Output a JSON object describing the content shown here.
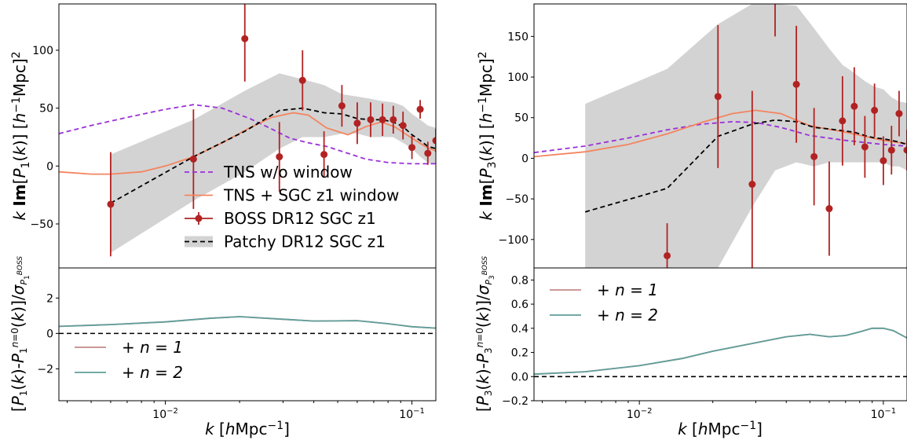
{
  "chart_data": [
    {
      "type": "line",
      "panel": "top-left",
      "xscale": "log",
      "xlim": [
        0.0037,
        0.125
      ],
      "ylim": [
        -88,
        140
      ],
      "ylabel": "k Im[P_1(k)] [h^-1 Mpc]^2",
      "yticks": [
        {
          "v": -50,
          "label": "−50"
        },
        {
          "v": 0,
          "label": "0"
        },
        {
          "v": 50,
          "label": "50"
        },
        {
          "v": 100,
          "label": "100"
        }
      ],
      "legend_position": "lower-center",
      "legend": [
        {
          "label": "TNS w/o window",
          "kind": "dashed",
          "color": "#9b30d9"
        },
        {
          "label": "TNS + SGC z1 window",
          "kind": "solid",
          "color": "#f4845f"
        },
        {
          "label": "BOSS DR12 SGC z1",
          "kind": "errorbar",
          "color": "#b22222"
        },
        {
          "label": "Patchy DR12 SGC z1",
          "kind": "band",
          "color": "#000000"
        }
      ],
      "series": [
        {
          "name": "TNS w/o window",
          "style": "dashed",
          "color": "#9b30d9",
          "x": [
            0.0037,
            0.005,
            0.007,
            0.01,
            0.013,
            0.017,
            0.022,
            0.027,
            0.032,
            0.038,
            0.045,
            0.055,
            0.065,
            0.08,
            0.1,
            0.125
          ],
          "y": [
            28,
            35,
            42,
            49,
            53,
            50,
            41,
            32,
            24,
            20,
            17,
            11,
            6,
            3,
            2,
            2
          ]
        },
        {
          "name": "TNS + SGC z1 window",
          "style": "solid",
          "color": "#f4845f",
          "x": [
            0.0037,
            0.005,
            0.006,
            0.008,
            0.01,
            0.013,
            0.017,
            0.022,
            0.027,
            0.033,
            0.038,
            0.045,
            0.055,
            0.065,
            0.075,
            0.085,
            0.1,
            0.115,
            0.125
          ],
          "y": [
            -5,
            -7,
            -7,
            -5,
            0,
            8,
            20,
            33,
            42,
            46,
            44,
            33,
            27,
            34,
            38,
            34,
            24,
            16,
            13
          ]
        },
        {
          "name": "Patchy DR12 SGC z1",
          "style": "dashed",
          "color": "#000000",
          "x": [
            0.006,
            0.013,
            0.021,
            0.029,
            0.036,
            0.044,
            0.052,
            0.06,
            0.068,
            0.076,
            0.084,
            0.092,
            0.1,
            0.108,
            0.116,
            0.125
          ],
          "y": [
            -32,
            8,
            30,
            48,
            50,
            46,
            45,
            41,
            40,
            40,
            38,
            34,
            27,
            22,
            17,
            15
          ]
        }
      ],
      "band": {
        "x": [
          0.006,
          0.013,
          0.021,
          0.029,
          0.036,
          0.044,
          0.052,
          0.06,
          0.068,
          0.076,
          0.084,
          0.092,
          0.1,
          0.108,
          0.116,
          0.125
        ],
        "upper": [
          10,
          40,
          65,
          80,
          75,
          70,
          62,
          60,
          58,
          56,
          55,
          52,
          45,
          40,
          35,
          33
        ],
        "lower": [
          -75,
          -30,
          -5,
          15,
          25,
          25,
          28,
          28,
          25,
          25,
          25,
          20,
          15,
          8,
          3,
          2
        ]
      },
      "errorbars": {
        "x": [
          0.006,
          0.013,
          0.021,
          0.029,
          0.036,
          0.044,
          0.052,
          0.06,
          0.068,
          0.076,
          0.084,
          0.092,
          0.1,
          0.108,
          0.116,
          0.125
        ],
        "y": [
          -33,
          6,
          110,
          8,
          74,
          10,
          52,
          37,
          40,
          40,
          40,
          35,
          16,
          49,
          11,
          22
        ],
        "err": [
          45,
          43,
          37,
          30,
          26,
          20,
          18,
          18,
          15,
          14,
          12,
          12,
          10,
          8,
          10,
          10
        ]
      }
    },
    {
      "type": "line",
      "panel": "bottom-left",
      "xscale": "log",
      "xlim": [
        0.0037,
        0.125
      ],
      "ylim": [
        -3.8,
        3.7
      ],
      "ylabel": "[P_1(k)-P_1^{n=0}(k)]/σ_{P_1^BOSS}",
      "xlabel": "k [hMpc^-1]",
      "xticks": [
        {
          "v": 0.01,
          "base": "10",
          "exp": "−2"
        },
        {
          "v": 0.1,
          "base": "10",
          "exp": "−1"
        }
      ],
      "yticks": [
        {
          "v": -2,
          "label": "−2"
        },
        {
          "v": 0,
          "label": "0"
        },
        {
          "v": 2,
          "label": "2"
        }
      ],
      "legend_position": "lower-left",
      "legend": [
        {
          "label": "+ n = 1",
          "color": "#c48a8a"
        },
        {
          "label": "+ n = 2",
          "color": "#5f9e9a"
        }
      ],
      "series": [
        {
          "name": "+ n = 1",
          "color": "#c48a8a",
          "x": [
            0.0037,
            0.006,
            0.01,
            0.015,
            0.02,
            0.03,
            0.04,
            0.06,
            0.08,
            0.1,
            0.125
          ],
          "y": [
            0.4,
            0.5,
            0.65,
            0.85,
            0.95,
            0.8,
            0.7,
            0.72,
            0.55,
            0.38,
            0.3
          ]
        },
        {
          "name": "+ n = 2",
          "color": "#5f9e9a",
          "x": [
            0.0037,
            0.006,
            0.01,
            0.015,
            0.02,
            0.03,
            0.04,
            0.06,
            0.08,
            0.1,
            0.125
          ],
          "y": [
            0.4,
            0.5,
            0.65,
            0.85,
            0.95,
            0.8,
            0.7,
            0.72,
            0.55,
            0.38,
            0.3
          ]
        }
      ],
      "hline": {
        "y": 0,
        "style": "dashed",
        "color": "#000000"
      }
    },
    {
      "type": "line",
      "panel": "top-right",
      "xscale": "log",
      "xlim": [
        0.0037,
        0.125
      ],
      "ylim": [
        -135,
        190
      ],
      "ylabel": "k Im[P_3(k)] [h^-1 Mpc]^2",
      "yticks": [
        {
          "v": -100,
          "label": "−100"
        },
        {
          "v": -50,
          "label": "−50"
        },
        {
          "v": 0,
          "label": "0"
        },
        {
          "v": 50,
          "label": "50"
        },
        {
          "v": 100,
          "label": "100"
        },
        {
          "v": 150,
          "label": "150"
        }
      ],
      "series": [
        {
          "name": "TNS w/o window",
          "style": "dashed",
          "color": "#9b30d9",
          "x": [
            0.0037,
            0.006,
            0.009,
            0.013,
            0.018,
            0.024,
            0.03,
            0.038,
            0.05,
            0.07,
            0.1,
            0.125
          ],
          "y": [
            7,
            15,
            25,
            35,
            42,
            45,
            44,
            38,
            28,
            22,
            17,
            15
          ]
        },
        {
          "name": "TNS + SGC z1 window",
          "style": "solid",
          "color": "#f4845f",
          "x": [
            0.0037,
            0.006,
            0.009,
            0.013,
            0.018,
            0.024,
            0.03,
            0.038,
            0.05,
            0.07,
            0.1,
            0.125
          ],
          "y": [
            2,
            8,
            17,
            30,
            44,
            55,
            59,
            55,
            40,
            32,
            22,
            18
          ]
        },
        {
          "name": "Patchy DR12 SGC z1",
          "style": "dashed",
          "color": "#000000",
          "x": [
            0.006,
            0.013,
            0.021,
            0.029,
            0.036,
            0.044,
            0.052,
            0.06,
            0.068,
            0.076,
            0.084,
            0.092,
            0.1,
            0.108,
            0.116,
            0.125
          ],
          "y": [
            -66,
            -37,
            27,
            42,
            47,
            45,
            38,
            36,
            34,
            32,
            28,
            25,
            24,
            22,
            20,
            17
          ]
        }
      ],
      "band": {
        "x": [
          0.006,
          0.013,
          0.021,
          0.029,
          0.036,
          0.044,
          0.052,
          0.06,
          0.068,
          0.076,
          0.084,
          0.092,
          0.1,
          0.108,
          0.116,
          0.125
        ],
        "upper": [
          67,
          110,
          165,
          190,
          190,
          188,
          160,
          135,
          115,
          105,
          95,
          88,
          85,
          75,
          70,
          68
        ],
        "lower": [
          -135,
          -135,
          -135,
          -60,
          -15,
          -5,
          -10,
          -5,
          -5,
          -5,
          -5,
          -5,
          -5,
          -10,
          -10,
          -15
        ]
      },
      "errorbars": {
        "x": [
          0.013,
          0.021,
          0.029,
          0.036,
          0.044,
          0.052,
          0.06,
          0.068,
          0.076,
          0.084,
          0.092,
          0.1,
          0.108,
          0.116,
          0.125
        ],
        "y": [
          -120,
          76,
          -32,
          240,
          91,
          2,
          -62,
          46,
          64,
          14,
          59,
          -3,
          10,
          55,
          10
        ],
        "err": [
          40,
          88,
          115,
          90,
          72,
          60,
          58,
          55,
          48,
          38,
          33,
          30,
          30,
          28,
          25
        ]
      }
    },
    {
      "type": "line",
      "panel": "bottom-right",
      "xscale": "log",
      "xlim": [
        0.0037,
        0.125
      ],
      "ylim": [
        -0.2,
        0.9
      ],
      "ylabel": "[P_3(k)-P_3^{n=0}(k)]/σ_{P_3^BOSS}",
      "xlabel": "k [hMpc^-1]",
      "xticks": [
        {
          "v": 0.01,
          "base": "10",
          "exp": "−2"
        },
        {
          "v": 0.1,
          "base": "10",
          "exp": "−1"
        }
      ],
      "yticks": [
        {
          "v": -0.2,
          "label": "−0.2"
        },
        {
          "v": 0.0,
          "label": "0.0"
        },
        {
          "v": 0.2,
          "label": "0.2"
        },
        {
          "v": 0.4,
          "label": "0.4"
        },
        {
          "v": 0.6,
          "label": "0.6"
        },
        {
          "v": 0.8,
          "label": "0.8"
        }
      ],
      "legend_position": "upper-left",
      "legend": [
        {
          "label": "+ n = 1",
          "color": "#c48a8a"
        },
        {
          "label": "+ n = 2",
          "color": "#5f9e9a"
        }
      ],
      "series": [
        {
          "name": "+ n = 1",
          "color": "#c48a8a",
          "x": [
            0.0037,
            0.006,
            0.01,
            0.015,
            0.02,
            0.03,
            0.04,
            0.05,
            0.06,
            0.07,
            0.08,
            0.09,
            0.1,
            0.11,
            0.125
          ],
          "y": [
            0.02,
            0.04,
            0.09,
            0.15,
            0.21,
            0.28,
            0.33,
            0.35,
            0.33,
            0.34,
            0.37,
            0.4,
            0.4,
            0.38,
            0.32
          ]
        },
        {
          "name": "+ n = 2",
          "color": "#5f9e9a",
          "x": [
            0.0037,
            0.006,
            0.01,
            0.015,
            0.02,
            0.03,
            0.04,
            0.05,
            0.06,
            0.07,
            0.08,
            0.09,
            0.1,
            0.11,
            0.125
          ],
          "y": [
            0.02,
            0.04,
            0.09,
            0.15,
            0.21,
            0.28,
            0.33,
            0.35,
            0.33,
            0.34,
            0.37,
            0.4,
            0.4,
            0.38,
            0.32
          ]
        }
      ],
      "hline": {
        "y": 0,
        "style": "dashed",
        "color": "#000000"
      }
    }
  ],
  "colors": {
    "band": "#d3d3d3",
    "errorbar": "#b22222",
    "tns_nowindow": "#9b30d9",
    "tns_window": "#f4845f",
    "n1": "#c48a8a",
    "n2": "#5f9e9a"
  }
}
